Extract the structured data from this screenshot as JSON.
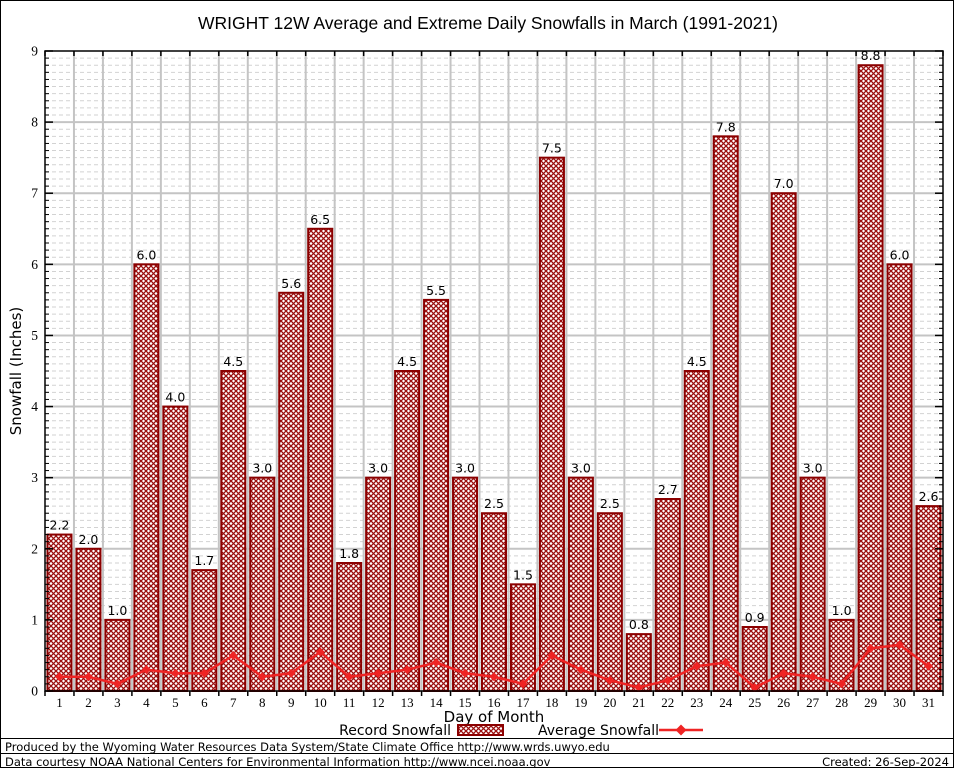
{
  "title": "WRIGHT 12W Average and Extreme Daily Snowfalls in March (1991-2021)",
  "chart_data": {
    "type": "bar",
    "title": "WRIGHT 12W Average and Extreme Daily Snowfalls in March (1991-2021)",
    "xlabel": "Day of Month",
    "ylabel": "Snowfall (Inches)",
    "ylim": [
      0,
      9
    ],
    "y_major_step": 1,
    "y_minor_step": 0.1,
    "grid": true,
    "legend_position": "bottom",
    "categories": [
      1,
      2,
      3,
      4,
      5,
      6,
      7,
      8,
      9,
      10,
      11,
      12,
      13,
      14,
      15,
      16,
      17,
      18,
      19,
      20,
      21,
      22,
      23,
      24,
      25,
      26,
      27,
      28,
      29,
      30,
      31
    ],
    "series": [
      {
        "name": "Record Snowfall",
        "type": "bar",
        "values": [
          2.2,
          2.0,
          1.0,
          6.0,
          4.0,
          1.7,
          4.5,
          3.0,
          5.6,
          6.5,
          1.8,
          3.0,
          4.5,
          5.5,
          3.0,
          2.5,
          1.5,
          7.5,
          3.0,
          2.5,
          0.8,
          2.7,
          4.5,
          7.8,
          0.9,
          7.0,
          3.0,
          1.0,
          8.8,
          6.0,
          2.6
        ]
      },
      {
        "name": "Average Snowfall",
        "type": "line",
        "values": [
          0.2,
          0.2,
          0.1,
          0.3,
          0.25,
          0.25,
          0.5,
          0.2,
          0.25,
          0.55,
          0.2,
          0.25,
          0.3,
          0.4,
          0.25,
          0.2,
          0.1,
          0.5,
          0.3,
          0.15,
          0.05,
          0.15,
          0.35,
          0.4,
          0.05,
          0.25,
          0.2,
          0.1,
          0.6,
          0.65,
          0.35
        ]
      }
    ],
    "colors": {
      "bar_hatch": "#9b0f0f",
      "bar_border": "#8b0000",
      "line": "#ef2424",
      "major_grid": "#c4c4c4",
      "minor_grid": "#d2d2d2",
      "axis": "#000000"
    }
  },
  "legend": {
    "record_label": "Record Snowfall",
    "average_label": "Average Snowfall"
  },
  "footer": {
    "line1": "Produced by the Wyoming Water Resources Data System/State Climate Office http://www.wrds.uwyo.edu",
    "line2": "Data courtesy NOAA National Centers for Environmental Information http://www.ncei.noaa.gov",
    "created": "Created: 26-Sep-2024"
  }
}
